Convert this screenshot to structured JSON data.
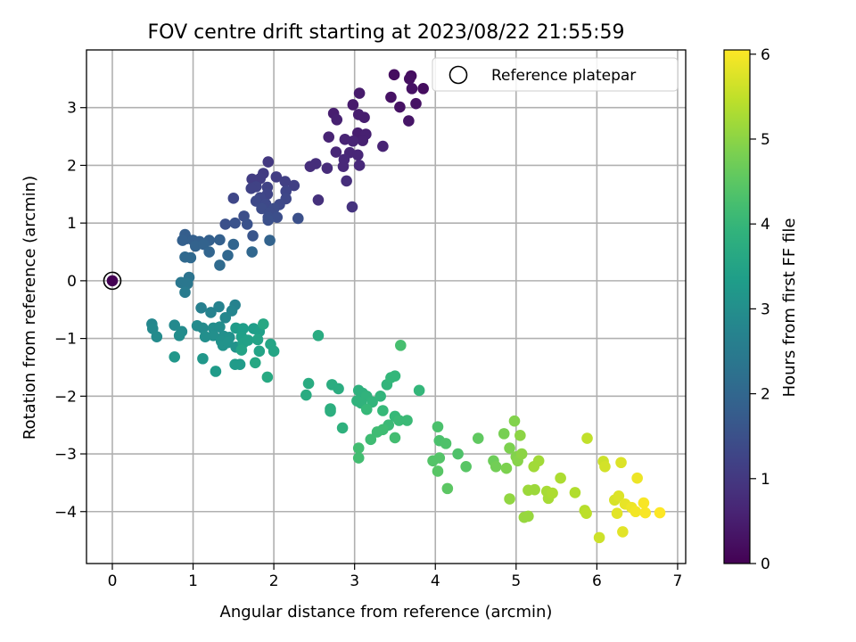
{
  "chart_data": {
    "type": "scatter",
    "title": "FOV centre drift starting at 2023/08/22 21:55:59",
    "xlabel": "Angular distance from reference (arcmin)",
    "ylabel": "Rotation from reference (arcmin)",
    "xlim": [
      -0.32,
      7.1
    ],
    "ylim": [
      -4.9,
      4.0
    ],
    "xticks": [
      "0",
      "1",
      "2",
      "3",
      "4",
      "5",
      "6",
      "7"
    ],
    "yticks": [
      "3",
      "2",
      "1",
      "0",
      "−1",
      "−2",
      "−3",
      "−4"
    ],
    "grid": true,
    "legend": {
      "placement": "top-right",
      "label": "Reference platepar"
    },
    "reference_point": {
      "x": 0,
      "y": 0
    },
    "colorbar": {
      "label": "Hours from first FF file",
      "range": [
        0,
        6.05
      ],
      "ticks": [
        "0",
        "1",
        "2",
        "3",
        "4",
        "5",
        "6"
      ],
      "colormap": "viridis"
    },
    "points": [
      {
        "x": 0.0,
        "y": 0.0,
        "h": 0.0
      },
      {
        "x": 3.49,
        "y": 3.57,
        "h": 0.2
      },
      {
        "x": 3.7,
        "y": 3.55,
        "h": 0.2
      },
      {
        "x": 3.68,
        "y": 3.5,
        "h": 0.25
      },
      {
        "x": 3.85,
        "y": 3.33,
        "h": 0.2
      },
      {
        "x": 3.71,
        "y": 3.33,
        "h": 0.3
      },
      {
        "x": 3.45,
        "y": 3.18,
        "h": 0.3
      },
      {
        "x": 3.56,
        "y": 3.01,
        "h": 0.3
      },
      {
        "x": 3.76,
        "y": 3.07,
        "h": 0.3
      },
      {
        "x": 3.67,
        "y": 2.77,
        "h": 0.35
      },
      {
        "x": 3.06,
        "y": 3.25,
        "h": 0.45
      },
      {
        "x": 2.98,
        "y": 3.05,
        "h": 0.45
      },
      {
        "x": 3.05,
        "y": 2.88,
        "h": 0.5
      },
      {
        "x": 3.12,
        "y": 2.83,
        "h": 0.5
      },
      {
        "x": 2.74,
        "y": 2.9,
        "h": 0.5
      },
      {
        "x": 2.78,
        "y": 2.79,
        "h": 0.55
      },
      {
        "x": 3.04,
        "y": 2.56,
        "h": 0.5
      },
      {
        "x": 3.14,
        "y": 2.54,
        "h": 0.55
      },
      {
        "x": 3.1,
        "y": 2.43,
        "h": 0.55
      },
      {
        "x": 2.88,
        "y": 2.45,
        "h": 0.6
      },
      {
        "x": 2.68,
        "y": 2.49,
        "h": 0.6
      },
      {
        "x": 2.98,
        "y": 2.42,
        "h": 0.6
      },
      {
        "x": 3.35,
        "y": 2.33,
        "h": 0.6
      },
      {
        "x": 2.77,
        "y": 2.23,
        "h": 0.65
      },
      {
        "x": 2.94,
        "y": 2.22,
        "h": 0.65
      },
      {
        "x": 3.04,
        "y": 2.18,
        "h": 0.65
      },
      {
        "x": 2.87,
        "y": 2.1,
        "h": 0.7
      },
      {
        "x": 3.06,
        "y": 2.0,
        "h": 0.7
      },
      {
        "x": 2.86,
        "y": 1.98,
        "h": 0.7
      },
      {
        "x": 2.66,
        "y": 1.95,
        "h": 0.75
      },
      {
        "x": 2.52,
        "y": 2.03,
        "h": 0.8
      },
      {
        "x": 2.45,
        "y": 1.98,
        "h": 0.8
      },
      {
        "x": 2.9,
        "y": 1.73,
        "h": 0.8
      },
      {
        "x": 2.55,
        "y": 1.4,
        "h": 0.85
      },
      {
        "x": 2.97,
        "y": 1.28,
        "h": 0.9
      },
      {
        "x": 1.93,
        "y": 2.06,
        "h": 1.0
      },
      {
        "x": 1.87,
        "y": 1.86,
        "h": 1.05
      },
      {
        "x": 2.03,
        "y": 1.8,
        "h": 1.1
      },
      {
        "x": 1.83,
        "y": 1.77,
        "h": 1.1
      },
      {
        "x": 1.73,
        "y": 1.76,
        "h": 1.1
      },
      {
        "x": 2.14,
        "y": 1.72,
        "h": 1.15
      },
      {
        "x": 2.25,
        "y": 1.65,
        "h": 1.15
      },
      {
        "x": 1.78,
        "y": 1.63,
        "h": 1.2
      },
      {
        "x": 1.92,
        "y": 1.62,
        "h": 1.2
      },
      {
        "x": 1.72,
        "y": 1.6,
        "h": 1.2
      },
      {
        "x": 2.15,
        "y": 1.55,
        "h": 1.25
      },
      {
        "x": 1.92,
        "y": 1.5,
        "h": 1.25
      },
      {
        "x": 1.83,
        "y": 1.44,
        "h": 1.3
      },
      {
        "x": 2.15,
        "y": 1.42,
        "h": 1.3
      },
      {
        "x": 1.5,
        "y": 1.43,
        "h": 1.3
      },
      {
        "x": 1.78,
        "y": 1.38,
        "h": 1.35
      },
      {
        "x": 2.07,
        "y": 1.32,
        "h": 1.35
      },
      {
        "x": 1.9,
        "y": 1.33,
        "h": 1.35
      },
      {
        "x": 1.85,
        "y": 1.25,
        "h": 1.4
      },
      {
        "x": 2.0,
        "y": 1.25,
        "h": 1.4
      },
      {
        "x": 1.95,
        "y": 1.18,
        "h": 1.4
      },
      {
        "x": 1.63,
        "y": 1.12,
        "h": 1.45
      },
      {
        "x": 1.93,
        "y": 1.1,
        "h": 1.45
      },
      {
        "x": 2.04,
        "y": 1.1,
        "h": 1.45
      },
      {
        "x": 2.3,
        "y": 1.08,
        "h": 1.5
      },
      {
        "x": 1.93,
        "y": 1.05,
        "h": 1.5
      },
      {
        "x": 1.4,
        "y": 0.98,
        "h": 1.5
      },
      {
        "x": 1.52,
        "y": 1.0,
        "h": 1.55
      },
      {
        "x": 1.67,
        "y": 0.98,
        "h": 1.55
      },
      {
        "x": 1.74,
        "y": 0.78,
        "h": 1.6
      },
      {
        "x": 0.9,
        "y": 0.8,
        "h": 1.8
      },
      {
        "x": 0.92,
        "y": 0.73,
        "h": 1.8
      },
      {
        "x": 0.87,
        "y": 0.7,
        "h": 1.85
      },
      {
        "x": 1.0,
        "y": 0.7,
        "h": 1.85
      },
      {
        "x": 1.08,
        "y": 0.68,
        "h": 1.85
      },
      {
        "x": 1.2,
        "y": 0.7,
        "h": 1.85
      },
      {
        "x": 1.33,
        "y": 0.71,
        "h": 1.85
      },
      {
        "x": 1.03,
        "y": 0.6,
        "h": 1.9
      },
      {
        "x": 1.13,
        "y": 0.63,
        "h": 1.9
      },
      {
        "x": 1.95,
        "y": 0.7,
        "h": 1.9
      },
      {
        "x": 1.5,
        "y": 0.63,
        "h": 1.95
      },
      {
        "x": 1.2,
        "y": 0.5,
        "h": 1.95
      },
      {
        "x": 1.43,
        "y": 0.44,
        "h": 2.0
      },
      {
        "x": 1.73,
        "y": 0.5,
        "h": 2.0
      },
      {
        "x": 0.9,
        "y": 0.41,
        "h": 2.05
      },
      {
        "x": 0.97,
        "y": 0.4,
        "h": 2.05
      },
      {
        "x": 1.33,
        "y": 0.27,
        "h": 2.1
      },
      {
        "x": 0.95,
        "y": 0.06,
        "h": 2.3
      },
      {
        "x": 0.85,
        "y": -0.03,
        "h": 2.4
      },
      {
        "x": 0.93,
        "y": -0.05,
        "h": 2.4
      },
      {
        "x": 0.9,
        "y": -0.2,
        "h": 2.5
      },
      {
        "x": 1.1,
        "y": -0.47,
        "h": 2.6
      },
      {
        "x": 1.22,
        "y": -0.55,
        "h": 2.7
      },
      {
        "x": 1.52,
        "y": -0.42,
        "h": 2.7
      },
      {
        "x": 1.32,
        "y": -0.45,
        "h": 2.7
      },
      {
        "x": 1.48,
        "y": -0.52,
        "h": 2.75
      },
      {
        "x": 1.4,
        "y": -0.64,
        "h": 2.8
      },
      {
        "x": 0.49,
        "y": -0.75,
        "h": 2.8
      },
      {
        "x": 0.5,
        "y": -0.83,
        "h": 2.85
      },
      {
        "x": 0.77,
        "y": -0.77,
        "h": 2.85
      },
      {
        "x": 0.86,
        "y": -0.88,
        "h": 2.9
      },
      {
        "x": 0.55,
        "y": -0.97,
        "h": 2.9
      },
      {
        "x": 1.05,
        "y": -0.78,
        "h": 2.9
      },
      {
        "x": 1.12,
        "y": -0.82,
        "h": 2.9
      },
      {
        "x": 1.25,
        "y": -0.82,
        "h": 2.95
      },
      {
        "x": 1.33,
        "y": -0.8,
        "h": 2.95
      },
      {
        "x": 0.83,
        "y": -0.95,
        "h": 2.95
      },
      {
        "x": 1.25,
        "y": -0.95,
        "h": 3.0
      },
      {
        "x": 1.15,
        "y": -0.97,
        "h": 3.0
      },
      {
        "x": 1.38,
        "y": -0.96,
        "h": 3.0
      },
      {
        "x": 1.45,
        "y": -0.98,
        "h": 3.05
      },
      {
        "x": 1.35,
        "y": -1.05,
        "h": 3.05
      },
      {
        "x": 1.37,
        "y": -1.12,
        "h": 3.1
      },
      {
        "x": 1.43,
        "y": -1.07,
        "h": 3.1
      },
      {
        "x": 1.53,
        "y": -1.15,
        "h": 3.1
      },
      {
        "x": 0.77,
        "y": -1.32,
        "h": 3.2
      },
      {
        "x": 1.12,
        "y": -1.35,
        "h": 3.2
      },
      {
        "x": 1.52,
        "y": -1.45,
        "h": 3.3
      },
      {
        "x": 1.58,
        "y": -1.45,
        "h": 3.3
      },
      {
        "x": 1.28,
        "y": -1.57,
        "h": 3.3
      },
      {
        "x": 1.53,
        "y": -0.82,
        "h": 3.3
      },
      {
        "x": 1.62,
        "y": -0.83,
        "h": 3.35
      },
      {
        "x": 1.75,
        "y": -0.83,
        "h": 3.35
      },
      {
        "x": 1.82,
        "y": -0.88,
        "h": 3.4
      },
      {
        "x": 1.6,
        "y": -0.97,
        "h": 3.4
      },
      {
        "x": 1.62,
        "y": -1.08,
        "h": 3.45
      },
      {
        "x": 1.68,
        "y": -1.03,
        "h": 3.45
      },
      {
        "x": 1.8,
        "y": -1.02,
        "h": 3.5
      },
      {
        "x": 1.6,
        "y": -1.2,
        "h": 3.5
      },
      {
        "x": 1.82,
        "y": -1.22,
        "h": 3.5
      },
      {
        "x": 1.96,
        "y": -1.1,
        "h": 3.55
      },
      {
        "x": 2.0,
        "y": -1.22,
        "h": 3.55
      },
      {
        "x": 1.87,
        "y": -0.75,
        "h": 3.6
      },
      {
        "x": 1.77,
        "y": -1.42,
        "h": 3.6
      },
      {
        "x": 1.92,
        "y": -1.67,
        "h": 3.65
      },
      {
        "x": 2.43,
        "y": -1.78,
        "h": 3.7
      },
      {
        "x": 2.4,
        "y": -1.98,
        "h": 3.7
      },
      {
        "x": 2.55,
        "y": -0.95,
        "h": 3.7
      },
      {
        "x": 2.72,
        "y": -1.8,
        "h": 3.75
      },
      {
        "x": 2.8,
        "y": -1.87,
        "h": 3.75
      },
      {
        "x": 2.7,
        "y": -2.22,
        "h": 3.8
      },
      {
        "x": 2.7,
        "y": -2.26,
        "h": 3.8
      },
      {
        "x": 2.85,
        "y": -2.55,
        "h": 3.85
      },
      {
        "x": 3.05,
        "y": -1.9,
        "h": 3.85
      },
      {
        "x": 3.1,
        "y": -1.95,
        "h": 3.85
      },
      {
        "x": 3.15,
        "y": -2.0,
        "h": 3.9
      },
      {
        "x": 3.03,
        "y": -2.08,
        "h": 3.9
      },
      {
        "x": 3.08,
        "y": -2.12,
        "h": 3.9
      },
      {
        "x": 3.22,
        "y": -2.1,
        "h": 3.95
      },
      {
        "x": 3.32,
        "y": -2.0,
        "h": 3.95
      },
      {
        "x": 3.4,
        "y": -1.8,
        "h": 3.95
      },
      {
        "x": 3.45,
        "y": -1.68,
        "h": 4.0
      },
      {
        "x": 3.5,
        "y": -1.65,
        "h": 4.0
      },
      {
        "x": 3.8,
        "y": -1.9,
        "h": 4.0
      },
      {
        "x": 3.15,
        "y": -2.23,
        "h": 4.05
      },
      {
        "x": 3.35,
        "y": -2.25,
        "h": 4.05
      },
      {
        "x": 3.5,
        "y": -2.35,
        "h": 4.05
      },
      {
        "x": 3.55,
        "y": -2.42,
        "h": 4.1
      },
      {
        "x": 3.65,
        "y": -2.42,
        "h": 4.1
      },
      {
        "x": 3.42,
        "y": -2.5,
        "h": 4.1
      },
      {
        "x": 3.35,
        "y": -2.58,
        "h": 4.15
      },
      {
        "x": 3.28,
        "y": -2.62,
        "h": 4.15
      },
      {
        "x": 3.2,
        "y": -2.75,
        "h": 4.15
      },
      {
        "x": 3.05,
        "y": -2.9,
        "h": 4.2
      },
      {
        "x": 3.05,
        "y": -3.07,
        "h": 4.2
      },
      {
        "x": 3.5,
        "y": -2.72,
        "h": 4.2
      },
      {
        "x": 3.57,
        "y": -1.12,
        "h": 4.25
      },
      {
        "x": 4.03,
        "y": -2.53,
        "h": 4.3
      },
      {
        "x": 4.05,
        "y": -2.77,
        "h": 4.3
      },
      {
        "x": 4.13,
        "y": -2.82,
        "h": 4.35
      },
      {
        "x": 4.28,
        "y": -3.0,
        "h": 4.35
      },
      {
        "x": 3.97,
        "y": -3.12,
        "h": 4.4
      },
      {
        "x": 4.05,
        "y": -3.07,
        "h": 4.4
      },
      {
        "x": 4.03,
        "y": -3.3,
        "h": 4.45
      },
      {
        "x": 4.38,
        "y": -3.22,
        "h": 4.45
      },
      {
        "x": 4.15,
        "y": -3.6,
        "h": 4.5
      },
      {
        "x": 4.53,
        "y": -2.73,
        "h": 4.55
      },
      {
        "x": 4.72,
        "y": -3.12,
        "h": 4.7
      },
      {
        "x": 4.75,
        "y": -3.22,
        "h": 4.75
      },
      {
        "x": 4.85,
        "y": -2.65,
        "h": 4.8
      },
      {
        "x": 4.88,
        "y": -3.25,
        "h": 4.85
      },
      {
        "x": 4.92,
        "y": -2.9,
        "h": 4.85
      },
      {
        "x": 4.98,
        "y": -2.43,
        "h": 4.9
      },
      {
        "x": 5.0,
        "y": -3.05,
        "h": 4.9
      },
      {
        "x": 5.02,
        "y": -3.12,
        "h": 4.95
      },
      {
        "x": 5.05,
        "y": -2.68,
        "h": 5.0
      },
      {
        "x": 5.07,
        "y": -3.0,
        "h": 5.0
      },
      {
        "x": 4.92,
        "y": -3.78,
        "h": 5.05
      },
      {
        "x": 5.1,
        "y": -4.1,
        "h": 5.1
      },
      {
        "x": 5.15,
        "y": -4.08,
        "h": 5.1
      },
      {
        "x": 5.15,
        "y": -3.63,
        "h": 5.15
      },
      {
        "x": 5.23,
        "y": -3.62,
        "h": 5.15
      },
      {
        "x": 5.22,
        "y": -3.22,
        "h": 5.2
      },
      {
        "x": 5.28,
        "y": -3.12,
        "h": 5.2
      },
      {
        "x": 5.38,
        "y": -3.65,
        "h": 5.25
      },
      {
        "x": 5.4,
        "y": -3.77,
        "h": 5.25
      },
      {
        "x": 5.45,
        "y": -3.68,
        "h": 5.3
      },
      {
        "x": 5.55,
        "y": -3.42,
        "h": 5.3
      },
      {
        "x": 5.73,
        "y": -3.67,
        "h": 5.35
      },
      {
        "x": 5.85,
        "y": -3.98,
        "h": 5.4
      },
      {
        "x": 5.87,
        "y": -4.03,
        "h": 5.45
      },
      {
        "x": 5.88,
        "y": -2.73,
        "h": 5.5
      },
      {
        "x": 6.03,
        "y": -4.45,
        "h": 5.6
      },
      {
        "x": 6.08,
        "y": -3.13,
        "h": 5.6
      },
      {
        "x": 6.1,
        "y": -3.22,
        "h": 5.65
      },
      {
        "x": 6.22,
        "y": -3.8,
        "h": 5.7
      },
      {
        "x": 6.27,
        "y": -3.73,
        "h": 5.75
      },
      {
        "x": 6.3,
        "y": -3.15,
        "h": 5.75
      },
      {
        "x": 6.32,
        "y": -4.35,
        "h": 5.8
      },
      {
        "x": 6.25,
        "y": -4.03,
        "h": 5.8
      },
      {
        "x": 6.35,
        "y": -3.87,
        "h": 5.85
      },
      {
        "x": 6.43,
        "y": -3.93,
        "h": 5.9
      },
      {
        "x": 6.5,
        "y": -3.42,
        "h": 5.9
      },
      {
        "x": 6.48,
        "y": -4.0,
        "h": 5.95
      },
      {
        "x": 6.58,
        "y": -3.85,
        "h": 6.0
      },
      {
        "x": 6.6,
        "y": -4.02,
        "h": 6.0
      },
      {
        "x": 6.78,
        "y": -4.02,
        "h": 6.05
      }
    ]
  }
}
